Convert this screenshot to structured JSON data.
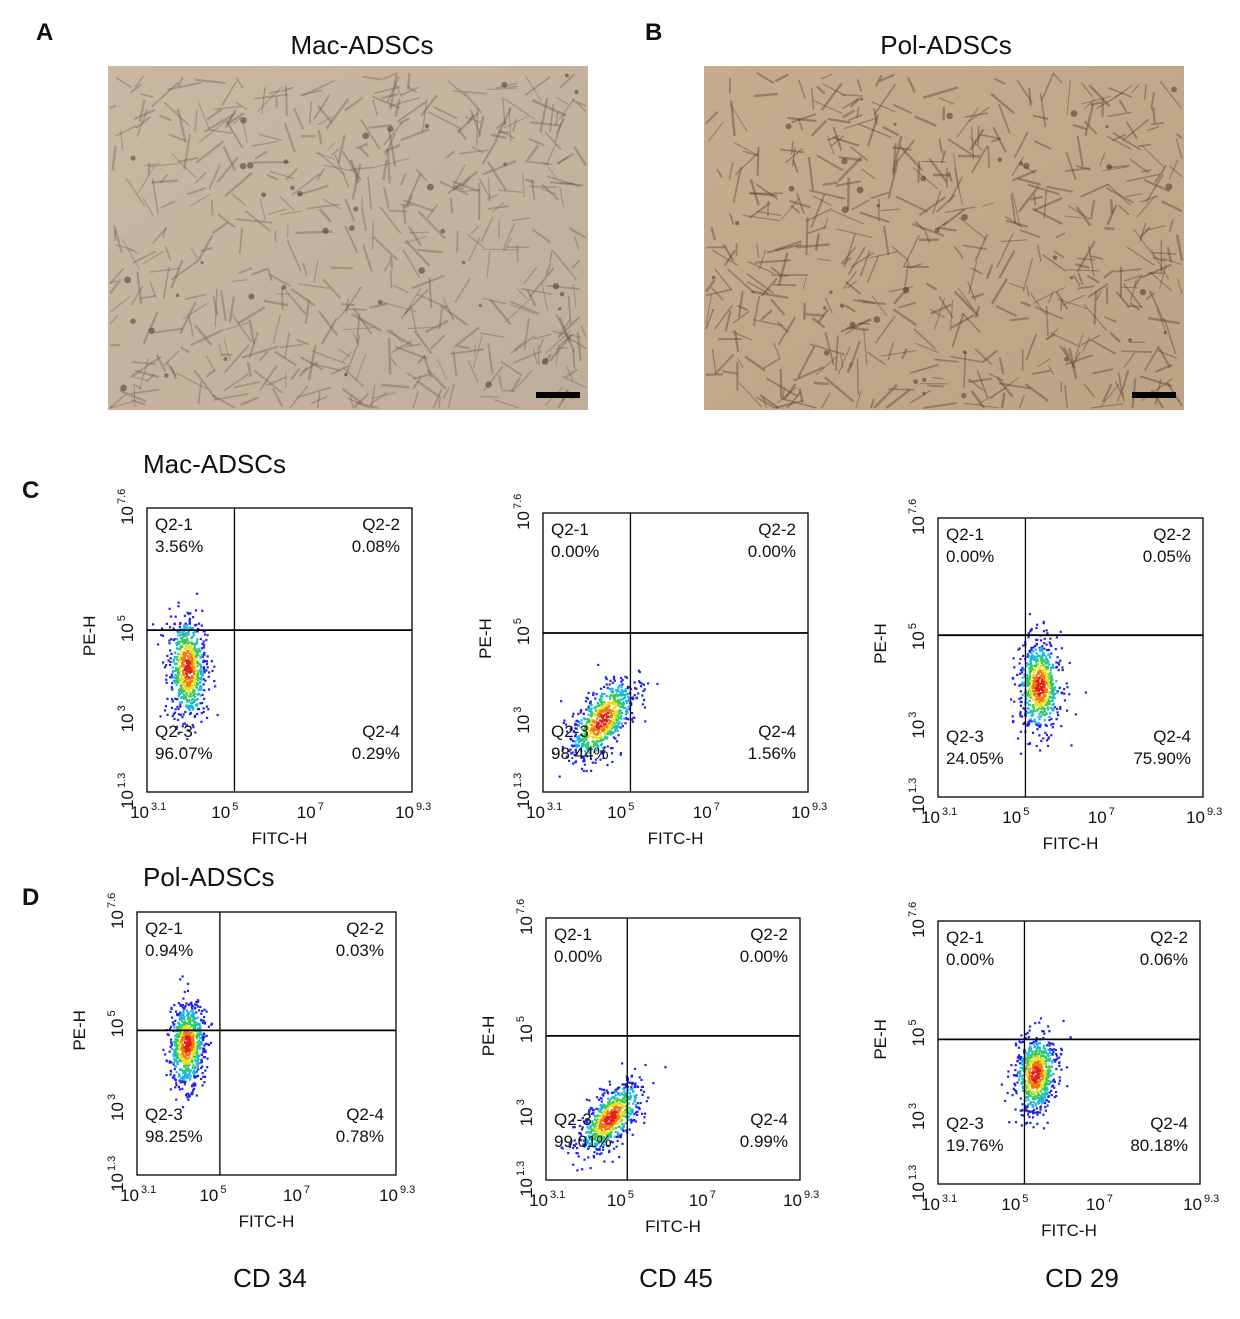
{
  "panels": [
    {
      "letter": "A",
      "title": "Mac-ADSCs"
    },
    {
      "letter": "B",
      "title": "Pol-ADSCs"
    }
  ],
  "flow_rows": [
    {
      "letter": "C",
      "title": "Mac-ADSCs",
      "plots": [
        [
          {
            "name": "Q2-1",
            "percent": "3.56%"
          },
          {
            "name": "Q2-2",
            "percent": "0.08%"
          },
          {
            "name": "Q2-3",
            "percent": "96.07%"
          },
          {
            "name": "Q2-4",
            "percent": "0.29%"
          }
        ],
        [
          {
            "name": "Q2-1",
            "percent": "0.00%"
          },
          {
            "name": "Q2-2",
            "percent": "0.00%"
          },
          {
            "name": "Q2-3",
            "percent": "98.44%"
          },
          {
            "name": "Q2-4",
            "percent": "1.56%"
          }
        ],
        [
          {
            "name": "Q2-1",
            "percent": "0.00%"
          },
          {
            "name": "Q2-2",
            "percent": "0.05%"
          },
          {
            "name": "Q2-3",
            "percent": "24.05%"
          },
          {
            "name": "Q2-4",
            "percent": "75.90%"
          }
        ]
      ]
    },
    {
      "letter": "D",
      "title": "Pol-ADSCs",
      "plots": [
        [
          {
            "name": "Q2-1",
            "percent": "0.94%"
          },
          {
            "name": "Q2-2",
            "percent": "0.03%"
          },
          {
            "name": "Q2-3",
            "percent": "98.25%"
          },
          {
            "name": "Q2-4",
            "percent": "0.78%"
          }
        ],
        [
          {
            "name": "Q2-1",
            "percent": "0.00%"
          },
          {
            "name": "Q2-2",
            "percent": "0.00%"
          },
          {
            "name": "Q2-3",
            "percent": "99.01%"
          },
          {
            "name": "Q2-4",
            "percent": "0.99%"
          }
        ],
        [
          {
            "name": "Q2-1",
            "percent": "0.00%"
          },
          {
            "name": "Q2-2",
            "percent": "0.06%"
          },
          {
            "name": "Q2-3",
            "percent": "19.76%"
          },
          {
            "name": "Q2-4",
            "percent": "80.18%"
          }
        ]
      ]
    }
  ],
  "axes": {
    "x_label": "FITC-H",
    "y_label": "PE-H",
    "x_ticks": [
      {
        "base": "10",
        "exp": "3.1"
      },
      {
        "base": "10",
        "exp": "5"
      },
      {
        "base": "10",
        "exp": "7"
      },
      {
        "base": "10",
        "exp": "9.3"
      }
    ],
    "y_ticks": [
      {
        "base": "10",
        "exp": "1.3"
      },
      {
        "base": "10",
        "exp": "3"
      },
      {
        "base": "10",
        "exp": "5"
      },
      {
        "base": "10",
        "exp": "7.6"
      }
    ]
  },
  "markers": [
    "CD 34",
    "CD 45",
    "CD 29"
  ]
}
